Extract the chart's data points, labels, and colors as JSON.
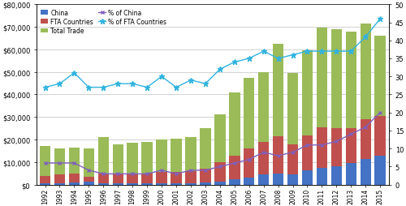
{
  "years": [
    1992,
    1993,
    1994,
    1995,
    1996,
    1997,
    1998,
    1999,
    2000,
    2001,
    2002,
    2003,
    2004,
    2005,
    2006,
    2007,
    2008,
    2009,
    2010,
    2011,
    2012,
    2013,
    2014,
    2015
  ],
  "china": [
    500,
    700,
    900,
    1200,
    700,
    600,
    500,
    500,
    700,
    500,
    700,
    1000,
    1500,
    2500,
    3000,
    4500,
    5000,
    4500,
    6500,
    7500,
    8000,
    9500,
    11500,
    13000
  ],
  "fta_countries": [
    4000,
    4500,
    5000,
    3500,
    5000,
    5000,
    5000,
    5000,
    5500,
    5500,
    6000,
    7000,
    10000,
    13000,
    16000,
    19000,
    21500,
    18000,
    22000,
    25500,
    25000,
    25000,
    29000,
    30500
  ],
  "total_trade": [
    17000,
    16000,
    16500,
    16000,
    21000,
    18000,
    18500,
    19000,
    20000,
    20500,
    21000,
    25000,
    31000,
    41000,
    47500,
    50000,
    62500,
    49500,
    59500,
    69500,
    69000,
    68000,
    71500,
    66000
  ],
  "pct_china": [
    6,
    6,
    6,
    4,
    3,
    3,
    3,
    3,
    4,
    3,
    4,
    4,
    5,
    6,
    7,
    9,
    8,
    9,
    11,
    11,
    12,
    14,
    16,
    20
  ],
  "pct_fta": [
    27,
    28,
    31,
    27,
    27,
    28,
    28,
    27,
    30,
    27,
    29,
    28,
    32,
    34,
    35,
    37,
    35,
    36,
    37,
    37,
    37,
    37,
    41,
    46
  ],
  "left_ylim": [
    0,
    80000
  ],
  "right_ylim": [
    0,
    50
  ],
  "left_yticks": [
    0,
    10000,
    20000,
    30000,
    40000,
    50000,
    60000,
    70000,
    80000
  ],
  "right_yticks": [
    0,
    5,
    10,
    15,
    20,
    25,
    30,
    35,
    40,
    45,
    50
  ],
  "color_china": "#4472C4",
  "color_fta": "#C0504D",
  "color_total": "#9BBB59",
  "color_pct_china": "#7F5FBE",
  "color_pct_fta": "#31B3E0",
  "legend_labels": [
    "China",
    "FTA Countries",
    "Total Trade",
    "% of China",
    "% of FTA Countries"
  ],
  "background_color": "#FFFFFF",
  "grid_color": "#C0C0C0"
}
